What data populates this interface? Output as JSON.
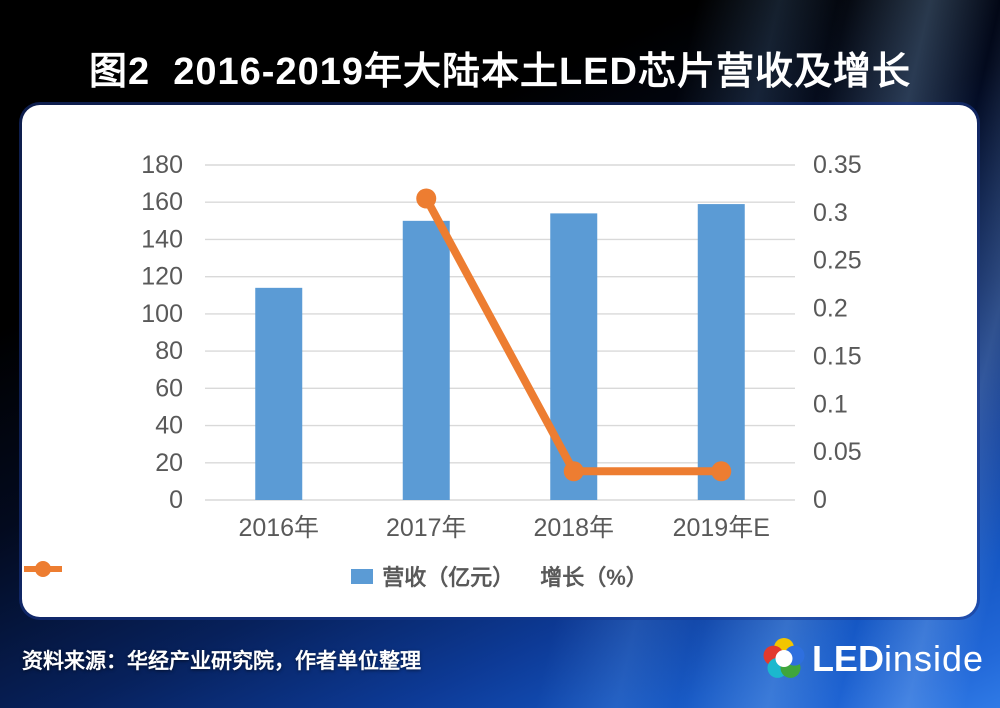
{
  "title": "图2  2016-2019年大陆本土LED芯片营收及增长",
  "source_note": "资料来源：华经产业研究院，作者单位整理",
  "logo": {
    "led": "LED",
    "inside": "inside"
  },
  "chart_data": {
    "type": "bar",
    "subtype": "bar-line-combo",
    "categories": [
      "2016年",
      "2017年",
      "2018年",
      "2019年E"
    ],
    "series": [
      {
        "name": "营收（亿元）",
        "type": "bar",
        "axis": "left",
        "color": "#5B9BD5",
        "values": [
          114,
          150,
          154,
          159
        ]
      },
      {
        "name": "增长（%）",
        "type": "line",
        "axis": "right",
        "color": "#ED7D31",
        "values": [
          null,
          0.315,
          0.03,
          0.03
        ]
      }
    ],
    "left_axis": {
      "min": 0,
      "max": 180,
      "step": 20,
      "ticks_top_to_bottom": [
        "180",
        "160",
        "140",
        "120",
        "100",
        "80",
        "60",
        "40",
        "20",
        "0"
      ]
    },
    "right_axis": {
      "min": 0,
      "max": 0.35,
      "step": 0.05,
      "ticks_top_to_bottom": [
        "0.35",
        "0.3",
        "0.25",
        "0.2",
        "0.15",
        "0.1",
        "0.05",
        "0"
      ]
    },
    "grid": "horizontal",
    "legend_position": "bottom",
    "colors": {
      "gridline": "#D9D9D9",
      "tick_text": "#595959",
      "title_text": "#FFFFFF"
    }
  }
}
